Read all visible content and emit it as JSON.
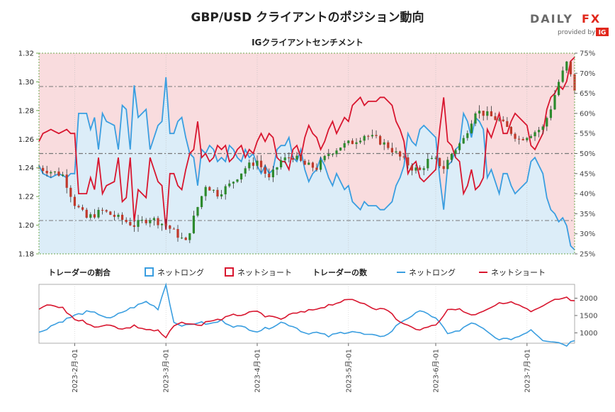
{
  "header": {
    "title": "GBP/USD クライアントのポジション動向",
    "subtitle": "IGクライアントセンチメント",
    "logo_text_a": "DAILY",
    "logo_text_b": "FX",
    "logo_provided": "provided by",
    "logo_ig": "IG"
  },
  "colors": {
    "long": "#3a9ee0",
    "long_fill": "#dcedf8",
    "short": "#d8162f",
    "short_fill": "#f9dcde",
    "bull_candle": "#2d8a2d",
    "bear_candle": "#c0392b",
    "axis_green": "#6fa84f"
  },
  "legend": {
    "ratio_title": "トレーダーの割合",
    "ratio_long": "ネットロング",
    "ratio_short": "ネットショート",
    "count_title": "トレーダーの数",
    "count_long": "ネットロング",
    "count_short": "ネットショート"
  },
  "chart_data": {
    "type": "line",
    "price_axis": {
      "ticks": [
        "1.32",
        "1.30",
        "1.28",
        "1.26",
        "1.24",
        "1.22",
        "1.20",
        "1.18"
      ],
      "ylim": [
        1.18,
        1.32
      ]
    },
    "percent_axis": {
      "ticks": [
        "75%",
        "70%",
        "65%",
        "60%",
        "55%",
        "50%",
        "45%",
        "40%",
        "35%",
        "30%",
        "25%"
      ],
      "ylim": [
        25,
        75
      ]
    },
    "count_axis": {
      "ticks": [
        "2000",
        "1500",
        "1000"
      ]
    },
    "date_ticks": [
      "2023-2月-01",
      "2023-3月-01",
      "2023-4月-01",
      "2023-5月-01",
      "2023-6月-01",
      "2023-7月-01"
    ],
    "date_tick_index": [
      9,
      32,
      55,
      78,
      100,
      123
    ],
    "ref_lines_percent": [
      50,
      33.3,
      66.7
    ],
    "num_days": 136,
    "price_anchors": [
      [
        0,
        1.24
      ],
      [
        6,
        1.235
      ],
      [
        9,
        1.215
      ],
      [
        12,
        1.205
      ],
      [
        16,
        1.21
      ],
      [
        20,
        1.205
      ],
      [
        24,
        1.2
      ],
      [
        28,
        1.205
      ],
      [
        32,
        1.2
      ],
      [
        35,
        1.193
      ],
      [
        37,
        1.188
      ],
      [
        39,
        1.205
      ],
      [
        42,
        1.228
      ],
      [
        45,
        1.222
      ],
      [
        48,
        1.228
      ],
      [
        52,
        1.24
      ],
      [
        55,
        1.245
      ],
      [
        58,
        1.232
      ],
      [
        61,
        1.245
      ],
      [
        64,
        1.248
      ],
      [
        67,
        1.242
      ],
      [
        70,
        1.24
      ],
      [
        73,
        1.25
      ],
      [
        76,
        1.255
      ],
      [
        79,
        1.258
      ],
      [
        82,
        1.263
      ],
      [
        85,
        1.26
      ],
      [
        88,
        1.255
      ],
      [
        90,
        1.25
      ],
      [
        92,
        1.245
      ],
      [
        94,
        1.24
      ],
      [
        96,
        1.238
      ],
      [
        98,
        1.245
      ],
      [
        100,
        1.245
      ],
      [
        102,
        1.24
      ],
      [
        104,
        1.25
      ],
      [
        107,
        1.26
      ],
      [
        110,
        1.28
      ],
      [
        113,
        1.277
      ],
      [
        116,
        1.273
      ],
      [
        119,
        1.265
      ],
      [
        121,
        1.26
      ],
      [
        124,
        1.264
      ],
      [
        127,
        1.268
      ],
      [
        129,
        1.282
      ],
      [
        131,
        1.3
      ],
      [
        133,
        1.313
      ],
      [
        135,
        1.295
      ]
    ],
    "long_pct_anchors": [
      [
        0,
        47
      ],
      [
        1,
        45
      ],
      [
        3,
        44
      ],
      [
        5,
        45
      ],
      [
        7,
        44
      ],
      [
        8,
        45
      ],
      [
        9,
        45
      ],
      [
        9.2,
        59
      ],
      [
        10,
        60
      ],
      [
        12,
        60
      ],
      [
        13,
        56
      ],
      [
        14,
        59
      ],
      [
        15,
        51
      ],
      [
        16,
        60
      ],
      [
        17,
        58
      ],
      [
        19,
        57
      ],
      [
        20,
        51
      ],
      [
        21,
        62
      ],
      [
        22,
        61
      ],
      [
        23,
        51
      ],
      [
        24,
        67
      ],
      [
        25,
        59
      ],
      [
        26,
        60
      ],
      [
        27,
        61
      ],
      [
        28,
        51
      ],
      [
        29,
        54
      ],
      [
        30,
        57
      ],
      [
        31,
        58
      ],
      [
        32,
        69
      ],
      [
        33,
        55
      ],
      [
        34,
        55
      ],
      [
        35,
        58
      ],
      [
        36,
        59
      ],
      [
        37,
        54
      ],
      [
        38,
        50
      ],
      [
        39,
        49
      ],
      [
        40,
        42
      ],
      [
        41,
        51
      ],
      [
        42,
        50
      ],
      [
        43,
        52
      ],
      [
        44,
        51
      ],
      [
        45,
        48
      ],
      [
        46,
        49
      ],
      [
        47,
        48
      ],
      [
        48,
        52
      ],
      [
        49,
        51
      ],
      [
        50,
        49
      ],
      [
        51,
        48
      ],
      [
        52,
        51
      ],
      [
        53,
        49
      ],
      [
        54,
        50
      ],
      [
        55,
        47
      ],
      [
        56,
        45
      ],
      [
        57,
        47
      ],
      [
        58,
        45
      ],
      [
        59,
        46
      ],
      [
        60,
        51
      ],
      [
        61,
        52
      ],
      [
        62,
        52
      ],
      [
        63,
        54
      ],
      [
        64,
        49
      ],
      [
        65,
        48
      ],
      [
        66,
        51
      ],
      [
        67,
        46
      ],
      [
        68,
        43
      ],
      [
        69,
        45
      ],
      [
        70,
        46
      ],
      [
        71,
        49
      ],
      [
        72,
        47
      ],
      [
        73,
        44
      ],
      [
        74,
        42
      ],
      [
        75,
        45
      ],
      [
        76,
        43
      ],
      [
        77,
        41
      ],
      [
        78,
        42
      ],
      [
        79,
        38
      ],
      [
        80,
        37
      ],
      [
        81,
        36
      ],
      [
        82,
        38
      ],
      [
        83,
        37
      ],
      [
        84,
        37
      ],
      [
        85,
        37
      ],
      [
        86,
        36
      ],
      [
        87,
        36
      ],
      [
        88,
        37
      ],
      [
        89,
        38
      ],
      [
        90,
        42
      ],
      [
        91,
        44
      ],
      [
        92,
        47
      ],
      [
        93,
        55
      ],
      [
        94,
        53
      ],
      [
        95,
        52
      ],
      [
        96,
        56
      ],
      [
        97,
        57
      ],
      [
        98,
        56
      ],
      [
        99,
        55
      ],
      [
        100,
        54
      ],
      [
        101,
        44
      ],
      [
        102,
        36
      ],
      [
        103,
        47
      ],
      [
        104,
        48
      ],
      [
        105,
        51
      ],
      [
        106,
        52
      ],
      [
        107,
        60
      ],
      [
        108,
        58
      ],
      [
        109,
        54
      ],
      [
        110,
        59
      ],
      [
        111,
        58
      ],
      [
        112,
        56
      ],
      [
        113,
        44
      ],
      [
        114,
        46
      ],
      [
        115,
        43
      ],
      [
        116,
        40
      ],
      [
        117,
        45
      ],
      [
        118,
        45
      ],
      [
        119,
        42
      ],
      [
        120,
        40
      ],
      [
        121,
        41
      ],
      [
        122,
        42
      ],
      [
        123,
        43
      ],
      [
        124,
        48
      ],
      [
        125,
        49
      ],
      [
        126,
        47
      ],
      [
        127,
        45
      ],
      [
        128,
        39
      ],
      [
        129,
        36
      ],
      [
        130,
        35
      ],
      [
        131,
        33
      ],
      [
        132,
        34
      ],
      [
        133,
        32
      ],
      [
        134,
        27
      ],
      [
        135,
        26
      ]
    ],
    "long_count_anchors": [
      [
        0,
        1000
      ],
      [
        3,
        1200
      ],
      [
        6,
        1350
      ],
      [
        9,
        1500
      ],
      [
        12,
        1600
      ],
      [
        15,
        1550
      ],
      [
        18,
        1400
      ],
      [
        21,
        1600
      ],
      [
        24,
        1750
      ],
      [
        27,
        1900
      ],
      [
        30,
        1700
      ],
      [
        32,
        2400
      ],
      [
        34,
        1300
      ],
      [
        37,
        1200
      ],
      [
        40,
        1300
      ],
      [
        43,
        1250
      ],
      [
        46,
        1350
      ],
      [
        49,
        1200
      ],
      [
        52,
        1150
      ],
      [
        55,
        1050
      ],
      [
        58,
        1150
      ],
      [
        61,
        1300
      ],
      [
        64,
        1200
      ],
      [
        67,
        1000
      ],
      [
        70,
        1000
      ],
      [
        73,
        900
      ],
      [
        76,
        1000
      ],
      [
        79,
        1050
      ],
      [
        82,
        950
      ],
      [
        85,
        900
      ],
      [
        88,
        950
      ],
      [
        91,
        1300
      ],
      [
        94,
        1500
      ],
      [
        97,
        1650
      ],
      [
        100,
        1400
      ],
      [
        103,
        1000
      ],
      [
        106,
        1050
      ],
      [
        109,
        1300
      ],
      [
        112,
        1100
      ],
      [
        115,
        850
      ],
      [
        118,
        800
      ],
      [
        121,
        900
      ],
      [
        124,
        1100
      ],
      [
        127,
        800
      ],
      [
        130,
        750
      ],
      [
        133,
        650
      ],
      [
        135,
        800
      ]
    ],
    "short_count_anchors": [
      [
        0,
        1700
      ],
      [
        3,
        1800
      ],
      [
        6,
        1700
      ],
      [
        9,
        1400
      ],
      [
        12,
        1300
      ],
      [
        15,
        1150
      ],
      [
        18,
        1250
      ],
      [
        21,
        1100
      ],
      [
        24,
        1200
      ],
      [
        27,
        1100
      ],
      [
        30,
        1050
      ],
      [
        32,
        850
      ],
      [
        34,
        1200
      ],
      [
        37,
        1300
      ],
      [
        40,
        1200
      ],
      [
        43,
        1350
      ],
      [
        46,
        1400
      ],
      [
        49,
        1500
      ],
      [
        52,
        1550
      ],
      [
        55,
        1600
      ],
      [
        58,
        1450
      ],
      [
        61,
        1400
      ],
      [
        64,
        1550
      ],
      [
        67,
        1600
      ],
      [
        70,
        1700
      ],
      [
        73,
        1800
      ],
      [
        76,
        1900
      ],
      [
        79,
        1950
      ],
      [
        82,
        1850
      ],
      [
        85,
        1700
      ],
      [
        88,
        1650
      ],
      [
        91,
        1300
      ],
      [
        94,
        1150
      ],
      [
        97,
        1100
      ],
      [
        100,
        1250
      ],
      [
        103,
        1650
      ],
      [
        106,
        1700
      ],
      [
        109,
        1500
      ],
      [
        112,
        1650
      ],
      [
        115,
        1800
      ],
      [
        118,
        1900
      ],
      [
        121,
        1800
      ],
      [
        124,
        1600
      ],
      [
        127,
        1750
      ],
      [
        130,
        1950
      ],
      [
        133,
        2000
      ],
      [
        135,
        1900
      ]
    ]
  }
}
